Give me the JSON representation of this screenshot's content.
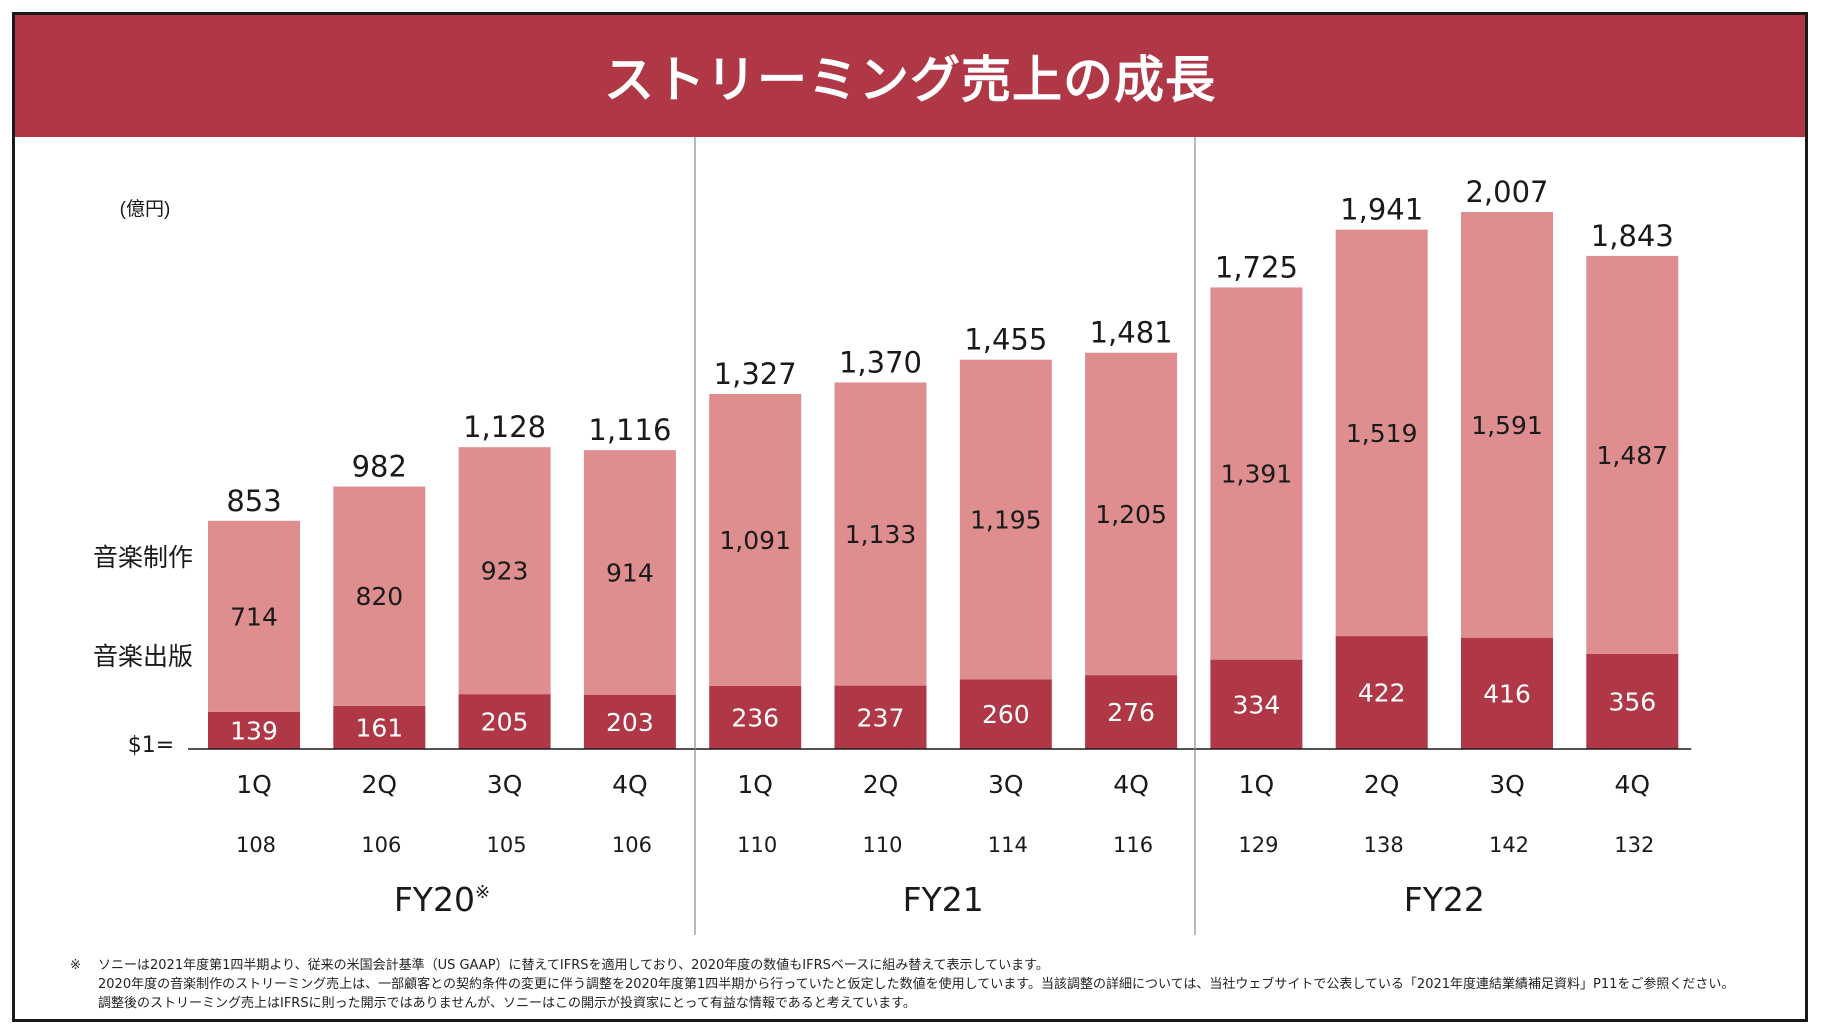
{
  "title": "ストリーミング売上の成長",
  "unit_label": "(億円)",
  "series_labels": {
    "production": "音楽制作",
    "publishing": "音楽出版"
  },
  "fx_label": "$1=",
  "fx_rates": [
    "108",
    "106",
    "105",
    "106",
    "110",
    "110",
    "114",
    "116",
    "129",
    "138",
    "142",
    "132"
  ],
  "fiscal_years": [
    {
      "label": "FY20",
      "note": "※"
    },
    {
      "label": "FY21",
      "note": ""
    },
    {
      "label": "FY22",
      "note": ""
    }
  ],
  "footnote": {
    "mark": "※",
    "lines": [
      "ソニーは2021年度第1四半期より、従来の米国会計基準（US GAAP）に替えてIFRSを適用しており、2020年度の数値もIFRSベースに組み替えて表示しています。",
      "2020年度の音楽制作のストリーミング売上は、一部顧客との契約条件の変更に伴う調整を2020年度第1四半期から行っていたと仮定した数値を使用しています。当該調整の詳細については、当社ウェブサイトで公表している「2021年度連結業績補足資料」P11をご参照ください。",
      "調整後のストリーミング売上はIFRSに則った開示ではありませんが、ソニーはこの開示が投資家にとって有益な情報であると考えています。"
    ]
  },
  "colors": {
    "header": "#b03746",
    "production": "#de8e8f",
    "publishing": "#b03746"
  },
  "chart_data": {
    "type": "bar",
    "stacked": true,
    "categories": [
      "1Q",
      "2Q",
      "3Q",
      "4Q",
      "1Q",
      "2Q",
      "3Q",
      "4Q",
      "1Q",
      "2Q",
      "3Q",
      "4Q"
    ],
    "groups": [
      "FY20",
      "FY21",
      "FY22"
    ],
    "series": [
      {
        "name": "音楽出版",
        "values": [
          139,
          161,
          205,
          203,
          236,
          237,
          260,
          276,
          334,
          422,
          416,
          356
        ]
      },
      {
        "name": "音楽制作",
        "values": [
          714,
          820,
          923,
          914,
          1091,
          1133,
          1195,
          1205,
          1391,
          1519,
          1591,
          1487
        ]
      }
    ],
    "totals": [
      "853",
      "982",
      "1,128",
      "1,116",
      "1,327",
      "1,370",
      "1,455",
      "1,481",
      "1,725",
      "1,941",
      "2,007",
      "1,843"
    ],
    "ylabel": "(億円)",
    "ylim": [
      0,
      2007
    ]
  }
}
